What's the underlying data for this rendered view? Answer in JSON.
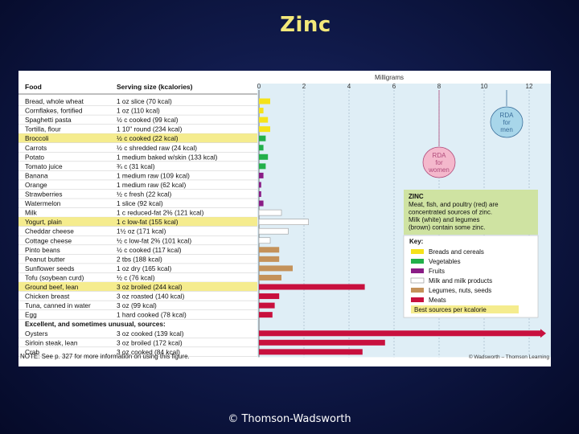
{
  "slide": {
    "title": "Zinc",
    "footer": "© Thomson-Wadsworth"
  },
  "colors": {
    "breads": "#f5e21a",
    "vegetables": "#22b04a",
    "fruits": "#8a1c86",
    "milk": "#ffffff",
    "legumes": "#c4925a",
    "meats": "#c8103e",
    "best_highlight": "#f5ec8e",
    "rda_bubble": "#a8d6ea",
    "rda_women_bubble": "#f4b8cc"
  },
  "chart_data": {
    "type": "bar",
    "orientation": "horizontal",
    "axis_title": "Milligrams",
    "xlim": [
      0,
      13
    ],
    "ticks": [
      0,
      2,
      4,
      6,
      8,
      10,
      12
    ],
    "columns": {
      "food": "Food",
      "serving": "Serving size (kcalories)"
    },
    "rows": [
      {
        "food": "Bread, whole wheat",
        "serving": "1 oz slice (70 kcal)",
        "value": 0.5,
        "group": "breads",
        "best": false
      },
      {
        "food": "Cornflakes, fortified",
        "serving": "1 oz (110 kcal)",
        "value": 0.2,
        "group": "breads",
        "best": false
      },
      {
        "food": "Spaghetti pasta",
        "serving": "½ c cooked (99 kcal)",
        "value": 0.4,
        "group": "breads",
        "best": false
      },
      {
        "food": "Tortilla, flour",
        "serving": "1 10\" round (234 kcal)",
        "value": 0.5,
        "group": "breads",
        "best": false
      },
      {
        "food": "Broccoli",
        "serving": "½ c cooked (22 kcal)",
        "value": 0.3,
        "group": "vegetables",
        "best": true
      },
      {
        "food": "Carrots",
        "serving": "½ c shredded raw (24 kcal)",
        "value": 0.2,
        "group": "vegetables",
        "best": false
      },
      {
        "food": "Potato",
        "serving": "1 medium baked w/skin (133 kcal)",
        "value": 0.4,
        "group": "vegetables",
        "best": false
      },
      {
        "food": "Tomato juice",
        "serving": "¾ c (31 kcal)",
        "value": 0.3,
        "group": "vegetables",
        "best": false
      },
      {
        "food": "Banana",
        "serving": "1 medium raw (109 kcal)",
        "value": 0.2,
        "group": "fruits",
        "best": false
      },
      {
        "food": "Orange",
        "serving": "1 medium raw (62 kcal)",
        "value": 0.1,
        "group": "fruits",
        "best": false
      },
      {
        "food": "Strawberries",
        "serving": "½ c fresh (22 kcal)",
        "value": 0.1,
        "group": "fruits",
        "best": false
      },
      {
        "food": "Watermelon",
        "serving": "1 slice (92 kcal)",
        "value": 0.2,
        "group": "fruits",
        "best": false
      },
      {
        "food": "Milk",
        "serving": "1 c reduced-fat 2% (121 kcal)",
        "value": 1.0,
        "group": "milk",
        "best": false
      },
      {
        "food": "Yogurt, plain",
        "serving": "1 c low-fat (155 kcal)",
        "value": 2.2,
        "group": "milk",
        "best": true
      },
      {
        "food": "Cheddar cheese",
        "serving": "1½ oz (171 kcal)",
        "value": 1.3,
        "group": "milk",
        "best": false
      },
      {
        "food": "Cottage cheese",
        "serving": "½ c low-fat 2% (101 kcal)",
        "value": 0.5,
        "group": "milk",
        "best": false
      },
      {
        "food": "Pinto beans",
        "serving": "½ c cooked (117 kcal)",
        "value": 0.9,
        "group": "legumes",
        "best": false
      },
      {
        "food": "Peanut butter",
        "serving": "2 tbs (188 kcal)",
        "value": 0.9,
        "group": "legumes",
        "best": false
      },
      {
        "food": "Sunflower seeds",
        "serving": "1 oz dry (165 kcal)",
        "value": 1.5,
        "group": "legumes",
        "best": false
      },
      {
        "food": "Tofu (soybean curd)",
        "serving": "½ c (76 kcal)",
        "value": 1.0,
        "group": "legumes",
        "best": false
      },
      {
        "food": "Ground beef, lean",
        "serving": "3 oz broiled (244 kcal)",
        "value": 4.7,
        "group": "meats",
        "best": true
      },
      {
        "food": "Chicken breast",
        "serving": "3 oz roasted (140 kcal)",
        "value": 0.9,
        "group": "meats",
        "best": false
      },
      {
        "food": "Tuna, canned in water",
        "serving": "3 oz (99 kcal)",
        "value": 0.7,
        "group": "meats",
        "best": false
      },
      {
        "food": "Egg",
        "serving": "1 hard cooked (78 kcal)",
        "value": 0.6,
        "group": "meats",
        "best": false
      }
    ],
    "unusual_heading": "Excellent, and sometimes unusual, sources:",
    "unusual_rows": [
      {
        "food": "Oysters",
        "serving": "3 oz cooked (139 kcal)",
        "value": 13,
        "group": "meats",
        "best": false,
        "off_scale": true
      },
      {
        "food": "Sirloin steak, lean",
        "serving": "3 oz broiled (172 kcal)",
        "value": 5.6,
        "group": "meats",
        "best": false
      },
      {
        "food": "Crab",
        "serving": "3 oz cooked (84 kcal)",
        "value": 4.6,
        "group": "meats",
        "best": false
      }
    ],
    "rda_markers": [
      {
        "label": "RDA for men",
        "lines": [
          "RDA",
          "for",
          "men"
        ],
        "value": 11
      },
      {
        "label": "RDA for women",
        "lines": [
          "RDA",
          "for",
          "women"
        ],
        "value": 8
      }
    ],
    "info_box": {
      "title": "ZINC",
      "lines": [
        "Meat, fish, and poultry (red) are",
        "concentrated sources of zinc.",
        "Milk (white) and legumes",
        "(brown) contain some zinc."
      ]
    },
    "key": {
      "title": "Key:",
      "items": [
        {
          "label": "Breads and cereals",
          "group": "breads"
        },
        {
          "label": "Vegetables",
          "group": "vegetables"
        },
        {
          "label": "Fruits",
          "group": "fruits"
        },
        {
          "label": "Milk and milk products",
          "group": "milk"
        },
        {
          "label": "Legumes, nuts, seeds",
          "group": "legumes"
        },
        {
          "label": "Meats",
          "group": "meats"
        }
      ],
      "best_label": "Best sources per kcalorie"
    },
    "note": "NOTE: See p. 327 for more information on using this figure.",
    "credit": "© Wadsworth – Thomson Learning"
  }
}
